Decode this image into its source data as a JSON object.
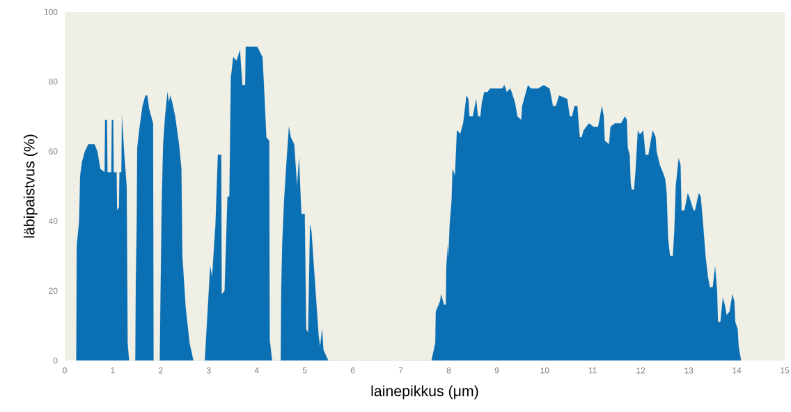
{
  "chart_data": {
    "type": "area",
    "xlabel": "lainepikkus (μm)",
    "ylabel": "läbipaistvus (%)",
    "xlim": [
      0,
      15
    ],
    "ylim": [
      0,
      100
    ],
    "xticks": [
      0,
      1,
      2,
      3,
      4,
      5,
      6,
      7,
      8,
      9,
      10,
      11,
      12,
      13,
      14,
      15
    ],
    "yticks": [
      0,
      20,
      40,
      60,
      80,
      100
    ],
    "series": [
      {
        "color": "#0b6fb4",
        "x": [
          0.24,
          0.25,
          0.3,
          0.32,
          0.36,
          0.42,
          0.49,
          0.62,
          0.68,
          0.74,
          0.83,
          0.84,
          0.88,
          0.89,
          0.97,
          0.98,
          1.01,
          1.02,
          1.08,
          1.09,
          1.13,
          1.14,
          1.18,
          1.19,
          1.21,
          1.24,
          1.29,
          1.31,
          1.34,
          1.47,
          1.48,
          1.5,
          1.51,
          1.55,
          1.62,
          1.68,
          1.72,
          1.76,
          1.8,
          1.84,
          1.85,
          1.98,
          1.99,
          2.02,
          2.05,
          2.09,
          2.14,
          2.17,
          2.2,
          2.24,
          2.3,
          2.38,
          2.43,
          2.45,
          2.52,
          2.6,
          2.68,
          2.92,
          2.93,
          3.03,
          3.07,
          3.14,
          3.19,
          3.26,
          3.27,
          3.33,
          3.39,
          3.43,
          3.46,
          3.51,
          3.58,
          3.65,
          3.7,
          3.76,
          3.77,
          4.01,
          4.12,
          4.16,
          4.2,
          4.26,
          4.27,
          4.32,
          4.5,
          4.51,
          4.53,
          4.57,
          4.62,
          4.67,
          4.71,
          4.78,
          4.84,
          4.88,
          4.93,
          5.0,
          5.03,
          5.07,
          5.11,
          5.14,
          5.2,
          5.25,
          5.29,
          5.32,
          5.36,
          5.39,
          5.49,
          7.64,
          7.72,
          7.73,
          7.82,
          7.84,
          7.9,
          7.94,
          7.95,
          7.98,
          7.99,
          8.02,
          8.06,
          8.08,
          8.13,
          8.17,
          8.24,
          8.3,
          8.37,
          8.41,
          8.43,
          8.5,
          8.53,
          8.57,
          8.61,
          8.66,
          8.69,
          8.74,
          8.81,
          8.86,
          9.11,
          9.16,
          9.21,
          9.28,
          9.31,
          9.38,
          9.43,
          9.51,
          9.53,
          9.61,
          9.65,
          9.71,
          9.78,
          9.86,
          9.98,
          10.1,
          10.13,
          10.17,
          10.23,
          10.3,
          10.47,
          10.52,
          10.57,
          10.62,
          10.68,
          10.7,
          10.73,
          10.77,
          10.81,
          10.92,
          11.02,
          11.11,
          11.14,
          11.19,
          11.23,
          11.25,
          11.34,
          11.37,
          11.46,
          11.59,
          11.67,
          11.71,
          11.73,
          11.77,
          11.79,
          11.81,
          11.86,
          11.89,
          11.94,
          11.97,
          12.0,
          12.05,
          12.1,
          12.16,
          12.21,
          12.25,
          12.31,
          12.33,
          12.4,
          12.46,
          12.51,
          12.54,
          12.57,
          12.61,
          12.67,
          12.7,
          12.73,
          12.79,
          12.83,
          12.85,
          12.91,
          12.98,
          13.01,
          13.1,
          13.13,
          13.21,
          13.25,
          13.3,
          13.35,
          13.4,
          13.44,
          13.5,
          13.55,
          13.59,
          13.61,
          13.66,
          13.71,
          13.75,
          13.79,
          13.85,
          13.91,
          13.95,
          13.97,
          14.02,
          14.04,
          14.09
        ],
        "values": [
          0,
          33,
          40,
          53,
          57,
          60,
          62,
          62,
          60,
          55,
          54,
          69,
          69,
          54,
          54,
          69,
          69,
          54,
          54,
          43,
          44,
          54,
          54,
          70,
          66,
          59,
          50,
          5,
          0,
          0,
          22,
          40,
          61,
          66,
          73,
          76,
          76,
          72,
          70,
          68,
          0,
          0,
          13,
          45,
          62,
          70,
          77,
          74,
          76,
          74,
          70,
          62,
          55,
          30,
          15,
          5,
          0,
          0,
          3,
          27,
          24,
          39,
          59,
          59,
          19,
          20,
          47,
          47,
          81,
          87,
          86,
          89,
          79,
          79,
          90,
          90,
          87,
          76,
          64,
          63,
          6,
          0,
          0,
          20,
          33,
          46,
          57,
          67,
          64,
          62,
          50,
          58,
          42,
          42,
          9,
          8,
          39,
          37,
          25,
          15,
          7,
          4,
          9,
          3,
          0,
          0,
          5,
          14,
          17,
          19,
          16,
          16,
          27,
          33,
          29,
          39,
          46,
          55,
          53,
          66,
          65,
          68,
          76,
          75,
          70,
          70,
          72,
          75,
          70,
          70,
          74,
          77,
          77,
          78,
          78,
          79,
          77,
          78,
          77,
          74,
          70,
          69,
          73,
          77,
          79,
          78,
          78,
          78,
          79,
          78,
          76,
          73,
          73,
          76,
          75,
          70,
          70,
          73,
          73,
          69,
          64,
          64,
          66,
          68,
          67,
          67,
          69,
          73,
          70,
          63,
          62,
          67,
          68,
          68,
          70,
          69,
          61,
          59,
          51,
          49,
          49,
          54,
          66,
          65,
          65,
          66,
          59,
          59,
          63,
          66,
          64,
          60,
          56,
          54,
          52,
          48,
          35,
          30,
          30,
          37,
          50,
          58,
          56,
          43,
          43,
          48,
          47,
          43,
          43,
          48,
          47,
          39,
          30,
          24,
          21,
          21,
          27,
          20,
          11,
          11,
          18,
          16,
          13,
          14,
          19,
          17,
          11,
          9,
          4,
          0
        ]
      }
    ]
  }
}
